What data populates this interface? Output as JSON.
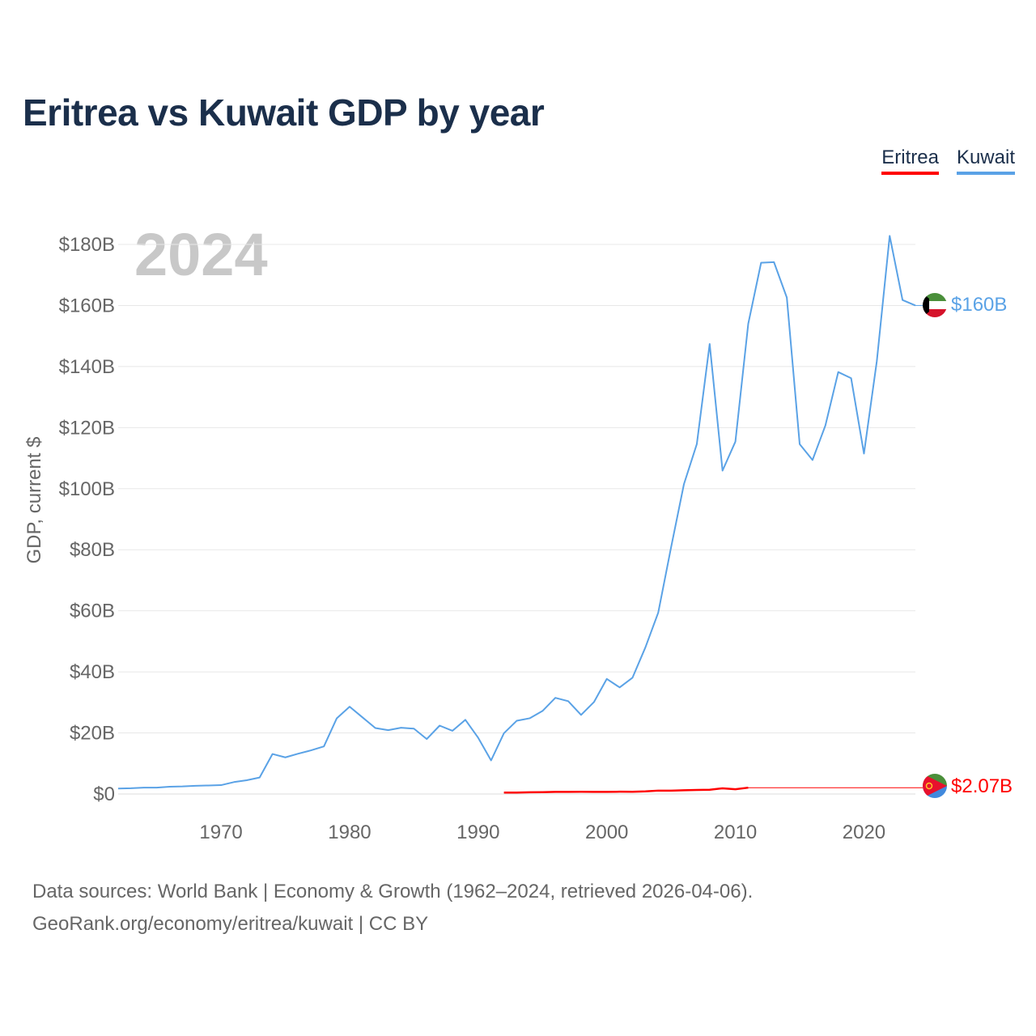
{
  "title": "Eritrea vs Kuwait GDP by year",
  "legend": {
    "eritrea": "Eritrea",
    "kuwait": "Kuwait"
  },
  "colors": {
    "eritrea": "#ff0000",
    "kuwait": "#5aa2e6",
    "title": "#1b2f4b",
    "year_watermark": "#c8c8c8"
  },
  "year_watermark": "2024",
  "end_labels": {
    "kuwait": "$160B",
    "eritrea": "$2.07B"
  },
  "footer": {
    "line1": "Data sources: World Bank | Economy & Growth (1962–2024, retrieved 2026-04-06).",
    "line2": "GeoRank.org/economy/eritrea/kuwait | CC BY"
  },
  "chart_data": {
    "type": "line",
    "title": "Eritrea vs Kuwait GDP by year",
    "xlabel": "",
    "ylabel": "GDP, current $",
    "xlim": [
      1962,
      2024
    ],
    "ylim": [
      0,
      180
    ],
    "y_unit": "billions USD",
    "y_ticks": [
      0,
      20,
      40,
      60,
      80,
      100,
      120,
      140,
      160,
      180
    ],
    "y_tick_labels": [
      "$0",
      "$20B",
      "$40B",
      "$60B",
      "$80B",
      "$100B",
      "$120B",
      "$140B",
      "$160B",
      "$180B"
    ],
    "x_ticks": [
      1970,
      1980,
      1990,
      2000,
      2010,
      2020
    ],
    "x_tick_labels": [
      "1970",
      "1980",
      "1990",
      "2000",
      "2010",
      "2020"
    ],
    "grid": true,
    "legend_position": "top-right",
    "series": [
      {
        "name": "Kuwait",
        "color": "#5aa2e6",
        "x": [
          1962,
          1963,
          1964,
          1965,
          1966,
          1967,
          1968,
          1969,
          1970,
          1971,
          1972,
          1973,
          1974,
          1975,
          1976,
          1977,
          1978,
          1979,
          1980,
          1981,
          1982,
          1983,
          1984,
          1985,
          1986,
          1987,
          1988,
          1989,
          1990,
          1991,
          1992,
          1993,
          1994,
          1995,
          1996,
          1997,
          1998,
          1999,
          2000,
          2001,
          2002,
          2003,
          2004,
          2005,
          2006,
          2007,
          2008,
          2009,
          2010,
          2011,
          2012,
          2013,
          2014,
          2015,
          2016,
          2017,
          2018,
          2019,
          2020,
          2021,
          2022,
          2023,
          2024
        ],
        "values": [
          1.8,
          1.9,
          2.1,
          2.1,
          2.4,
          2.5,
          2.7,
          2.8,
          2.9,
          3.9,
          4.5,
          5.4,
          13.1,
          12.0,
          13.2,
          14.3,
          15.6,
          24.8,
          28.6,
          25.1,
          21.6,
          20.9,
          21.7,
          21.4,
          18.0,
          22.4,
          20.7,
          24.3,
          18.4,
          11.0,
          19.9,
          24.0,
          24.8,
          27.2,
          31.5,
          30.4,
          25.9,
          30.1,
          37.7,
          34.9,
          38.1,
          48.0,
          59.4,
          80.8,
          101.5,
          114.6,
          147.4,
          105.9,
          115.4,
          154.0,
          174.0,
          174.2,
          162.6,
          114.6,
          109.4,
          120.7,
          138.2,
          136.2,
          111.5,
          141.8,
          182.8,
          161.8,
          160.0
        ]
      },
      {
        "name": "Eritrea",
        "color": "#ff0000",
        "x": [
          1992,
          1993,
          1994,
          1995,
          1996,
          1997,
          1998,
          1999,
          2000,
          2001,
          2002,
          2003,
          2004,
          2005,
          2006,
          2007,
          2008,
          2009,
          2010,
          2011,
          2024
        ],
        "values": [
          0.48,
          0.48,
          0.55,
          0.6,
          0.68,
          0.69,
          0.73,
          0.68,
          0.71,
          0.75,
          0.73,
          0.87,
          1.11,
          1.1,
          1.21,
          1.32,
          1.38,
          1.86,
          1.56,
          2.07,
          2.07
        ]
      }
    ]
  }
}
